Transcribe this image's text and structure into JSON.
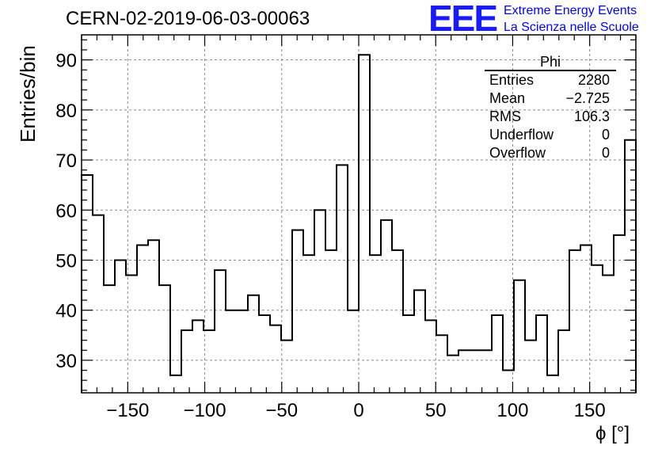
{
  "header": {
    "run_title": "CERN-02-2019-06-03-00063",
    "logo_text": "EEE",
    "logo_line1": "Extreme Energy Events",
    "logo_line2": "La Scienza nelle Scuole"
  },
  "stats_box": {
    "title": "Phi",
    "rows": [
      {
        "label": "Entries",
        "value": "2280"
      },
      {
        "label": "Mean",
        "value": "−2.725"
      },
      {
        "label": "RMS",
        "value": "106.3"
      },
      {
        "label": "Underflow",
        "value": "0"
      },
      {
        "label": "Overflow",
        "value": "0"
      }
    ]
  },
  "colors": {
    "line": "#000000",
    "grid": "#888888",
    "logo": "#1a1aff"
  },
  "chart_data": {
    "type": "histogram",
    "title": "CERN-02-2019-06-03-00063",
    "xlabel": "ϕ [°]",
    "ylabel": "Entries/bin",
    "xlim": [
      -180,
      180
    ],
    "ylim": [
      23.5,
      95
    ],
    "bin_width": 7.2,
    "bin_edges_start": -180,
    "values": [
      67,
      59,
      45,
      50,
      47,
      53,
      54,
      45,
      27,
      36,
      38,
      36,
      48,
      40,
      40,
      43,
      39,
      37,
      34,
      56,
      51,
      60,
      52,
      69,
      40,
      91,
      51,
      58,
      52,
      39,
      44,
      38,
      35,
      31,
      32,
      32,
      32,
      39,
      28,
      46,
      34,
      39,
      27,
      36,
      52,
      53,
      49,
      47,
      55,
      74
    ],
    "x_ticks": [
      -150,
      -100,
      -50,
      0,
      50,
      100,
      150
    ],
    "x_tick_labels": [
      "−150",
      "−100",
      "−50",
      "0",
      "50",
      "100",
      "150"
    ],
    "y_ticks": [
      30,
      40,
      50,
      60,
      70,
      80,
      90
    ],
    "y_tick_labels": [
      "30",
      "40",
      "50",
      "60",
      "70",
      "80",
      "90"
    ],
    "grid": true
  }
}
